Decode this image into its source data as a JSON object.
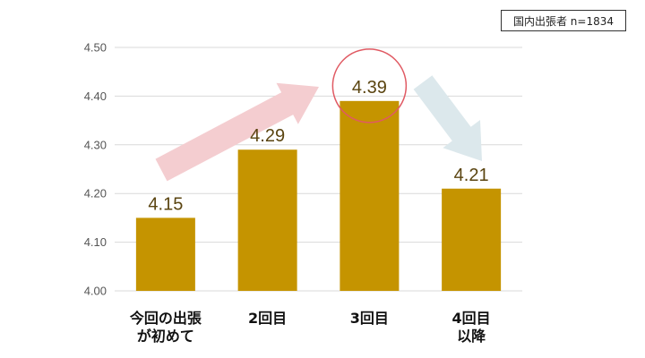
{
  "sample_note": "国内出張者 n=1834",
  "chart_data": {
    "type": "bar",
    "categories": [
      [
        "今回の出張",
        "が初めて"
      ],
      [
        "2回目"
      ],
      [
        "3回目"
      ],
      [
        "4回目",
        "以降"
      ]
    ],
    "values": [
      4.15,
      4.29,
      4.39,
      4.21
    ],
    "value_labels": [
      "4.15",
      "4.29",
      "4.39",
      "4.21"
    ],
    "ylim": [
      4.0,
      4.5
    ],
    "yticks": [
      "4.00",
      "4.10",
      "4.20",
      "4.30",
      "4.40",
      "4.50"
    ],
    "grid": true,
    "highlight_index": 2,
    "colors": {
      "bar": "#c59400",
      "grid": "#d9d9d9",
      "rise_arrow": "#f4cdd0",
      "fall_arrow": "#dce8ec",
      "highlight_circle": "#e05a63"
    }
  }
}
